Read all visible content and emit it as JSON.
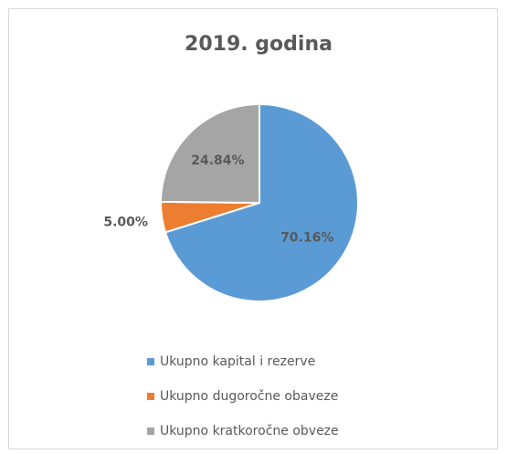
{
  "chart_data": {
    "type": "pie",
    "title": "2019. godina",
    "categories": [
      "Ukupno kapital i rezerve",
      "Ukupno dugoročne obaveze",
      "Ukupno kratkoročne obveze"
    ],
    "values": [
      70.16,
      5.0,
      24.84
    ],
    "value_labels": [
      "70.16%",
      "5.00%",
      "24.84%"
    ],
    "colors": [
      "#5b9bd5",
      "#ed7d31",
      "#a5a5a5"
    ],
    "legend": "bottom"
  }
}
